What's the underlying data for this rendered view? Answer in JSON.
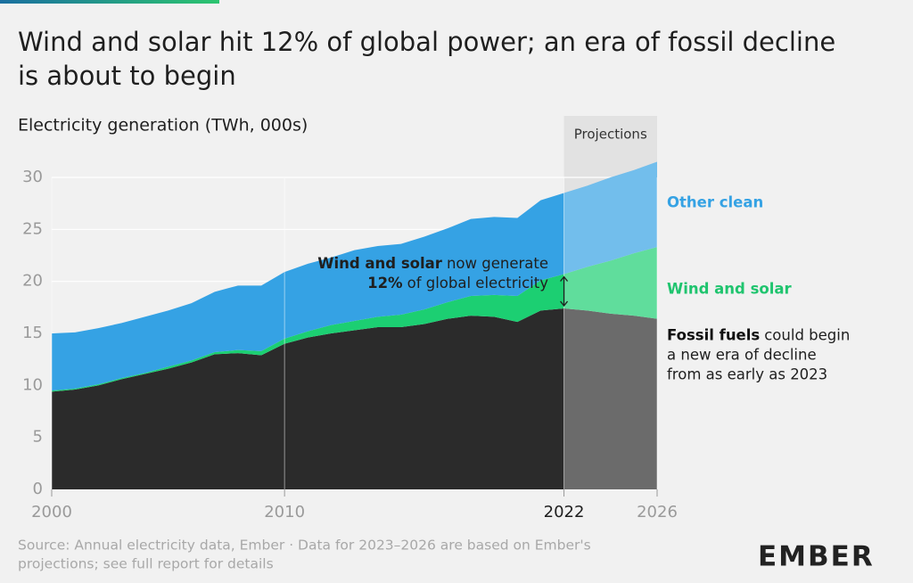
{
  "chart_data": {
    "type": "area",
    "title": [
      "Wind and solar hit 12% of global power; an era of fossil decline",
      "is about to begin"
    ],
    "y_label": "Electricity generation (TWh, 000s)",
    "x": [
      2000,
      2001,
      2002,
      2003,
      2004,
      2005,
      2006,
      2007,
      2008,
      2009,
      2010,
      2011,
      2012,
      2013,
      2014,
      2015,
      2016,
      2017,
      2018,
      2019,
      2020,
      2021,
      2022,
      2023,
      2024,
      2025,
      2026
    ],
    "series": [
      {
        "name": "Fossil fuels",
        "color": "#2b2b2b",
        "label_color": "#111111",
        "values": [
          9.4,
          9.6,
          10.0,
          10.6,
          11.1,
          11.6,
          12.2,
          13.0,
          13.1,
          12.9,
          14.0,
          14.6,
          15.0,
          15.3,
          15.6,
          15.6,
          15.9,
          16.4,
          16.7,
          16.6,
          16.1,
          17.2,
          17.4,
          17.2,
          16.9,
          16.7,
          16.4
        ]
      },
      {
        "name": "Wind and solar",
        "color": "#1ccf72",
        "label_color": "#1fc46e",
        "values": [
          0.1,
          0.1,
          0.1,
          0.1,
          0.1,
          0.2,
          0.2,
          0.2,
          0.3,
          0.4,
          0.5,
          0.6,
          0.8,
          0.9,
          1.0,
          1.2,
          1.4,
          1.6,
          1.9,
          2.1,
          2.5,
          2.9,
          3.3,
          4.2,
          5.1,
          6.0,
          6.9
        ]
      },
      {
        "name": "Other clean",
        "color": "#35a2e4",
        "label_color": "#35a2e4",
        "values": [
          5.5,
          5.4,
          5.4,
          5.3,
          5.4,
          5.4,
          5.5,
          5.8,
          6.2,
          6.3,
          6.4,
          6.5,
          6.5,
          6.8,
          6.8,
          6.8,
          7.0,
          7.1,
          7.4,
          7.5,
          7.5,
          7.7,
          7.8,
          7.8,
          8.0,
          8.0,
          8.2
        ]
      }
    ],
    "xlim": [
      2000,
      2026
    ],
    "xticks": [
      2000,
      2010,
      2022,
      2026
    ],
    "ylim": [
      0,
      32
    ],
    "yticks": [
      0,
      5,
      10,
      15,
      20,
      25,
      30
    ],
    "grid": true,
    "projection_range": [
      2022,
      2026
    ],
    "projection_label": "Projections",
    "ws_note": [
      [
        "Wind and solar",
        "now generate"
      ],
      [
        "12%",
        "of global electricity"
      ]
    ],
    "fossil_note": [
      "could begin",
      "a new era of decline",
      "from as early as 2023"
    ]
  },
  "source": [
    "Source: Annual electricity data, Ember · Data for 2023–2026 are based on Ember's",
    "projections; see full report for details"
  ],
  "logo": "EMBER"
}
